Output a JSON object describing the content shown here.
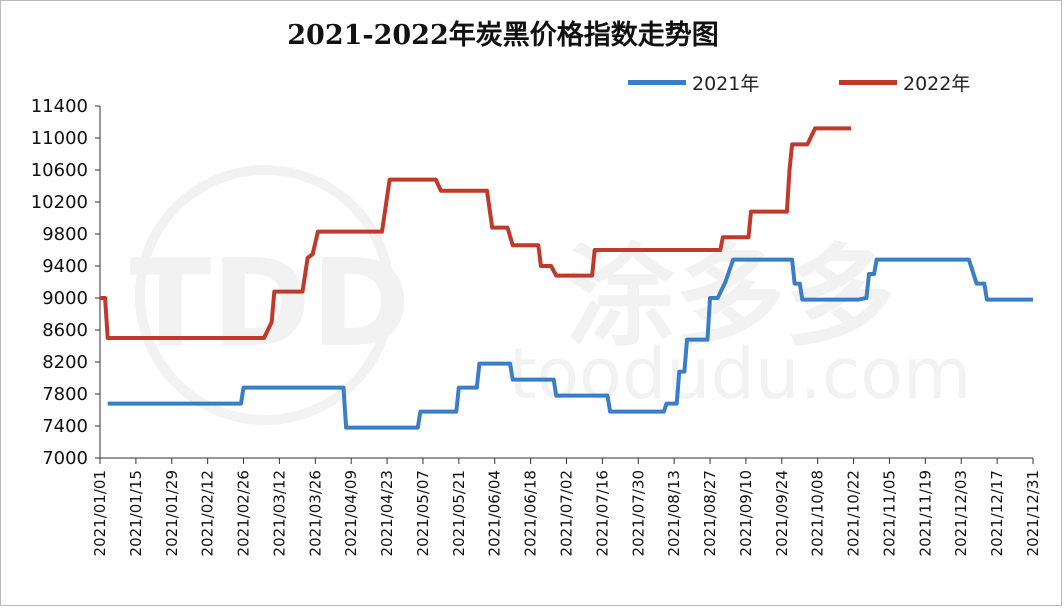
{
  "chart_data": {
    "type": "line",
    "title": "2021-2022年炭黑价格指数走势图",
    "xlabel": "",
    "ylabel": "",
    "ylim": [
      7000,
      11400
    ],
    "yticks": [
      7000,
      7400,
      7800,
      8200,
      8600,
      9000,
      9400,
      9800,
      10200,
      10600,
      11000,
      11400
    ],
    "xlim": [
      "2021/01/01",
      "2021/12/31"
    ],
    "xticks": [
      "2021/01/01",
      "2021/01/15",
      "2021/01/29",
      "2021/02/12",
      "2021/02/26",
      "2021/03/12",
      "2021/03/26",
      "2021/04/09",
      "2021/04/23",
      "2021/05/07",
      "2021/05/21",
      "2021/06/04",
      "2021/06/18",
      "2021/07/02",
      "2021/07/16",
      "2021/07/30",
      "2021/08/13",
      "2021/08/27",
      "2021/09/10",
      "2021/09/24",
      "2021/10/08",
      "2021/10/22",
      "2021/11/05",
      "2021/11/19",
      "2021/12/03",
      "2021/12/17",
      "2021/12/31"
    ],
    "grid": false,
    "legend": "top-right",
    "series": [
      {
        "name": "2021年",
        "color": "#3a7dc9",
        "points": [
          [
            "2021/01/04",
            7680
          ],
          [
            "2021/02/25",
            7680
          ],
          [
            "2021/02/26",
            7880
          ],
          [
            "2021/04/06",
            7880
          ],
          [
            "2021/04/07",
            7380
          ],
          [
            "2021/05/05",
            7380
          ],
          [
            "2021/05/06",
            7580
          ],
          [
            "2021/05/20",
            7580
          ],
          [
            "2021/05/21",
            7880
          ],
          [
            "2021/05/28",
            7880
          ],
          [
            "2021/05/29",
            8180
          ],
          [
            "2021/06/10",
            8180
          ],
          [
            "2021/06/11",
            7980
          ],
          [
            "2021/06/27",
            7980
          ],
          [
            "2021/06/28",
            7780
          ],
          [
            "2021/07/18",
            7780
          ],
          [
            "2021/07/19",
            7580
          ],
          [
            "2021/08/09",
            7580
          ],
          [
            "2021/08/10",
            7680
          ],
          [
            "2021/08/14",
            7680
          ],
          [
            "2021/08/15",
            8080
          ],
          [
            "2021/08/17",
            8080
          ],
          [
            "2021/08/18",
            8480
          ],
          [
            "2021/08/26",
            8480
          ],
          [
            "2021/08/27",
            9000
          ],
          [
            "2021/08/30",
            9000
          ],
          [
            "2021/09/02",
            9200
          ],
          [
            "2021/09/05",
            9480
          ],
          [
            "2021/09/28",
            9480
          ],
          [
            "2021/09/29",
            9180
          ],
          [
            "2021/10/01",
            9180
          ],
          [
            "2021/10/02",
            8980
          ],
          [
            "2021/10/24",
            8980
          ],
          [
            "2021/10/27",
            9000
          ],
          [
            "2021/10/28",
            9300
          ],
          [
            "2021/10/30",
            9300
          ],
          [
            "2021/10/31",
            9480
          ],
          [
            "2021/12/06",
            9480
          ],
          [
            "2021/12/09",
            9180
          ],
          [
            "2021/12/12",
            9180
          ],
          [
            "2021/12/13",
            8980
          ],
          [
            "2021/12/31",
            8980
          ]
        ]
      },
      {
        "name": "2022年",
        "color": "#c0392b",
        "points": [
          [
            "2021/01/01",
            9000
          ],
          [
            "2021/01/03",
            9000
          ],
          [
            "2021/01/04",
            8500
          ],
          [
            "2021/03/06",
            8500
          ],
          [
            "2021/03/09",
            8700
          ],
          [
            "2021/03/10",
            9080
          ],
          [
            "2021/03/21",
            9080
          ],
          [
            "2021/03/23",
            9500
          ],
          [
            "2021/03/25",
            9550
          ],
          [
            "2021/03/27",
            9830
          ],
          [
            "2021/04/21",
            9830
          ],
          [
            "2021/04/24",
            10480
          ],
          [
            "2021/05/12",
            10480
          ],
          [
            "2021/05/14",
            10340
          ],
          [
            "2021/06/01",
            10340
          ],
          [
            "2021/06/03",
            9880
          ],
          [
            "2021/06/09",
            9880
          ],
          [
            "2021/06/11",
            9660
          ],
          [
            "2021/06/21",
            9660
          ],
          [
            "2021/06/22",
            9400
          ],
          [
            "2021/06/26",
            9400
          ],
          [
            "2021/06/28",
            9280
          ],
          [
            "2021/07/12",
            9280
          ],
          [
            "2021/07/13",
            9600
          ],
          [
            "2021/08/31",
            9600
          ],
          [
            "2021/09/01",
            9760
          ],
          [
            "2021/09/11",
            9760
          ],
          [
            "2021/09/12",
            10080
          ],
          [
            "2021/09/26",
            10080
          ],
          [
            "2021/09/27",
            10600
          ],
          [
            "2021/09/28",
            10920
          ],
          [
            "2021/10/04",
            10920
          ],
          [
            "2021/10/07",
            11120
          ],
          [
            "2021/10/21",
            11120
          ]
        ]
      }
    ]
  },
  "watermark": {
    "logo_text": "TDD",
    "brand_text": "涂多多",
    "url_text": "toodudu.com"
  }
}
